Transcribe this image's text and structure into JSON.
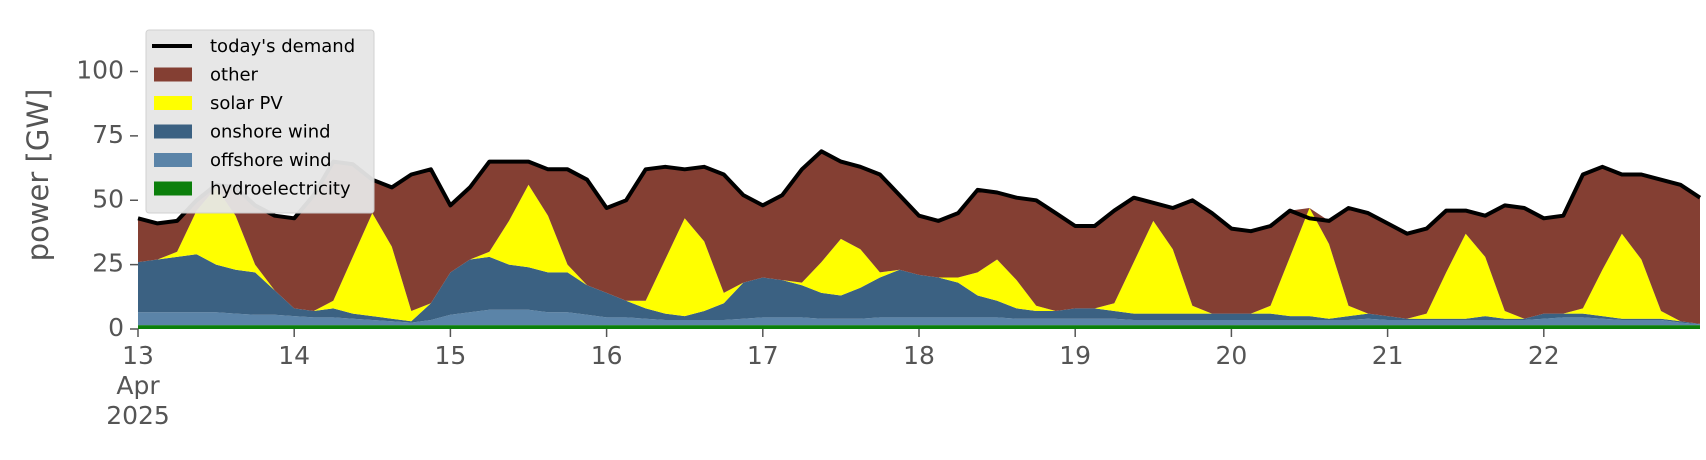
{
  "chart_data": {
    "type": "area",
    "stacked": true,
    "ylabel": "power [GW]",
    "ylim": [
      0,
      120
    ],
    "yticks": [
      0,
      25,
      50,
      75,
      100
    ],
    "xlim": [
      "2025-04-13T00:00",
      "2025-04-23T00:00"
    ],
    "xticks": [
      {
        "value": "2025-04-13T00:00",
        "label": "13\nApr\n2025"
      },
      {
        "value": "2025-04-14T00:00",
        "label": "14"
      },
      {
        "value": "2025-04-15T00:00",
        "label": "15"
      },
      {
        "value": "2025-04-16T00:00",
        "label": "16"
      },
      {
        "value": "2025-04-17T00:00",
        "label": "17"
      },
      {
        "value": "2025-04-18T00:00",
        "label": "18"
      },
      {
        "value": "2025-04-19T00:00",
        "label": "19"
      },
      {
        "value": "2025-04-20T00:00",
        "label": "20"
      },
      {
        "value": "2025-04-21T00:00",
        "label": "21"
      },
      {
        "value": "2025-04-22T00:00",
        "label": "22"
      }
    ],
    "grid": false,
    "legend": "upper left",
    "x": [
      "2025-04-13T00:00",
      "2025-04-13T03:00",
      "2025-04-13T06:00",
      "2025-04-13T09:00",
      "2025-04-13T12:00",
      "2025-04-13T15:00",
      "2025-04-13T18:00",
      "2025-04-13T21:00",
      "2025-04-14T00:00",
      "2025-04-14T03:00",
      "2025-04-14T06:00",
      "2025-04-14T09:00",
      "2025-04-14T12:00",
      "2025-04-14T15:00",
      "2025-04-14T18:00",
      "2025-04-14T21:00",
      "2025-04-15T00:00",
      "2025-04-15T03:00",
      "2025-04-15T06:00",
      "2025-04-15T09:00",
      "2025-04-15T12:00",
      "2025-04-15T15:00",
      "2025-04-15T18:00",
      "2025-04-15T21:00",
      "2025-04-16T00:00",
      "2025-04-16T03:00",
      "2025-04-16T06:00",
      "2025-04-16T09:00",
      "2025-04-16T12:00",
      "2025-04-16T15:00",
      "2025-04-16T18:00",
      "2025-04-16T21:00",
      "2025-04-17T00:00",
      "2025-04-17T03:00",
      "2025-04-17T06:00",
      "2025-04-17T09:00",
      "2025-04-17T12:00",
      "2025-04-17T15:00",
      "2025-04-17T18:00",
      "2025-04-17T21:00",
      "2025-04-18T00:00",
      "2025-04-18T03:00",
      "2025-04-18T06:00",
      "2025-04-18T09:00",
      "2025-04-18T12:00",
      "2025-04-18T15:00",
      "2025-04-18T18:00",
      "2025-04-18T21:00",
      "2025-04-19T00:00",
      "2025-04-19T03:00",
      "2025-04-19T06:00",
      "2025-04-19T09:00",
      "2025-04-19T12:00",
      "2025-04-19T15:00",
      "2025-04-19T18:00",
      "2025-04-19T21:00",
      "2025-04-20T00:00",
      "2025-04-20T03:00",
      "2025-04-20T06:00",
      "2025-04-20T09:00",
      "2025-04-20T12:00",
      "2025-04-20T15:00",
      "2025-04-20T18:00",
      "2025-04-20T21:00",
      "2025-04-21T00:00",
      "2025-04-21T03:00",
      "2025-04-21T06:00",
      "2025-04-21T09:00",
      "2025-04-21T12:00",
      "2025-04-21T15:00",
      "2025-04-21T18:00",
      "2025-04-21T21:00",
      "2025-04-22T00:00",
      "2025-04-22T03:00",
      "2025-04-22T06:00",
      "2025-04-22T09:00",
      "2025-04-22T12:00",
      "2025-04-22T15:00",
      "2025-04-22T18:00",
      "2025-04-22T21:00",
      "2025-04-23T00:00"
    ],
    "series": [
      {
        "name": "today's demand",
        "type": "line",
        "color": "#000000",
        "values": [
          43,
          41,
          42,
          50,
          56,
          55,
          48,
          44,
          43,
          52,
          65,
          64,
          58,
          55,
          60,
          62,
          48,
          55,
          65,
          65,
          65,
          62,
          62,
          58,
          47,
          50,
          62,
          63,
          62,
          63,
          60,
          52,
          48,
          52,
          62,
          69,
          65,
          63,
          60,
          52,
          44,
          42,
          45,
          54,
          53,
          51,
          50,
          45,
          40,
          40,
          46,
          51,
          49,
          47,
          50,
          45,
          39,
          38,
          40,
          46,
          43,
          42,
          47,
          45,
          41,
          37,
          39,
          46,
          46,
          44,
          48,
          47,
          43,
          44,
          60,
          63,
          60,
          60,
          58,
          56,
          51
        ]
      },
      {
        "name": "other",
        "type": "area",
        "color": "#843f33",
        "values": [
          17,
          14,
          12,
          4,
          1,
          11,
          23,
          29,
          35,
          45,
          54,
          36,
          13,
          23,
          53,
          52,
          26,
          28,
          35,
          23,
          9,
          18,
          37,
          41,
          33,
          39,
          51,
          36,
          19,
          29,
          46,
          34,
          28,
          33,
          44,
          43,
          30,
          32,
          38,
          29,
          23,
          22,
          25,
          32,
          26,
          32,
          41,
          38,
          32,
          32,
          36,
          25,
          7,
          16,
          41,
          39,
          33,
          32,
          31,
          18,
          0,
          9,
          38,
          39,
          36,
          33,
          33,
          24,
          9,
          16,
          41,
          43,
          37,
          38,
          52,
          40,
          23,
          33,
          51,
          53,
          49
        ]
      },
      {
        "name": "solar PV",
        "type": "area",
        "color": "#ffff00",
        "values": [
          0,
          0,
          2,
          17,
          30,
          21,
          3,
          0,
          0,
          0,
          3,
          22,
          40,
          28,
          4,
          0,
          0,
          0,
          2,
          17,
          32,
          22,
          3,
          0,
          0,
          0,
          3,
          21,
          38,
          27,
          4,
          0,
          0,
          0,
          1,
          12,
          22,
          15,
          2,
          0,
          0,
          0,
          2,
          9,
          16,
          11,
          2,
          0,
          0,
          0,
          3,
          20,
          36,
          25,
          3,
          0,
          0,
          0,
          3,
          23,
          42,
          29,
          4,
          0,
          0,
          0,
          2,
          18,
          33,
          23,
          3,
          0,
          0,
          0,
          2,
          18,
          33,
          23,
          3,
          0,
          0
        ]
      },
      {
        "name": "onshore wind",
        "type": "area",
        "color": "#3b6182",
        "values": [
          19.5,
          20.5,
          21.5,
          22.5,
          18.5,
          17,
          16.5,
          9.5,
          3,
          2.5,
          3.5,
          2,
          1.5,
          1,
          0.5,
          6.5,
          16.5,
          20.5,
          20.5,
          17.5,
          16.5,
          15.5,
          15.5,
          11.5,
          9.5,
          6.5,
          4,
          2.5,
          1.5,
          3.5,
          6.5,
          14,
          15.5,
          14.5,
          12.5,
          10,
          9,
          12,
          15.5,
          18.5,
          16.5,
          15.5,
          13.5,
          8.5,
          6.5,
          4,
          3,
          3,
          4,
          4,
          3,
          2.5,
          2.5,
          2.5,
          2.5,
          2.5,
          2.5,
          2.5,
          2.5,
          1.5,
          1.5,
          0.5,
          1.5,
          2,
          1.5,
          0.5,
          0.5,
          0.5,
          0.5,
          1.5,
          0.5,
          0.5,
          2,
          1.5,
          1.5,
          1,
          0.5,
          0.5,
          0.5,
          0.5,
          0.2
        ]
      },
      {
        "name": "offshore wind",
        "type": "area",
        "color": "#5b84a8",
        "values": [
          5,
          5,
          5,
          5,
          5,
          4.5,
          4,
          4,
          3.5,
          3,
          3,
          2.5,
          2,
          1.5,
          1,
          2,
          4,
          5,
          6,
          6,
          6,
          5,
          5,
          4,
          3,
          3,
          2.5,
          2,
          2,
          2,
          2,
          2.5,
          3,
          3,
          3,
          2.5,
          2.5,
          2.5,
          3,
          3,
          3,
          3,
          3,
          3,
          3,
          2.5,
          2.5,
          2.5,
          2.5,
          2.5,
          2.5,
          2,
          2,
          2,
          2,
          2,
          2,
          2,
          2,
          2,
          2,
          2,
          2,
          2.5,
          2,
          2,
          2,
          2,
          2,
          2,
          2,
          2,
          2.5,
          3,
          3,
          2.5,
          2,
          2,
          2,
          1,
          0.3
        ]
      },
      {
        "name": "hydroelectricity",
        "type": "area",
        "color": "#0b7f0b",
        "values": [
          1.5,
          1.5,
          1.5,
          1.5,
          1.5,
          1.5,
          1.5,
          1.5,
          1.5,
          1.5,
          1.5,
          1.5,
          1.5,
          1.5,
          1.5,
          1.5,
          1.5,
          1.5,
          1.5,
          1.5,
          1.5,
          1.5,
          1.5,
          1.5,
          1.5,
          1.5,
          1.5,
          1.5,
          1.5,
          1.5,
          1.5,
          1.5,
          1.5,
          1.5,
          1.5,
          1.5,
          1.5,
          1.5,
          1.5,
          1.5,
          1.5,
          1.5,
          1.5,
          1.5,
          1.5,
          1.5,
          1.5,
          1.5,
          1.5,
          1.5,
          1.5,
          1.5,
          1.5,
          1.5,
          1.5,
          1.5,
          1.5,
          1.5,
          1.5,
          1.5,
          1.5,
          1.5,
          1.5,
          1.5,
          1.5,
          1.5,
          1.5,
          1.5,
          1.5,
          1.5,
          1.5,
          1.5,
          1.5,
          1.5,
          1.5,
          1.5,
          1.5,
          1.5,
          1.5,
          1.5,
          1.5
        ]
      }
    ]
  }
}
